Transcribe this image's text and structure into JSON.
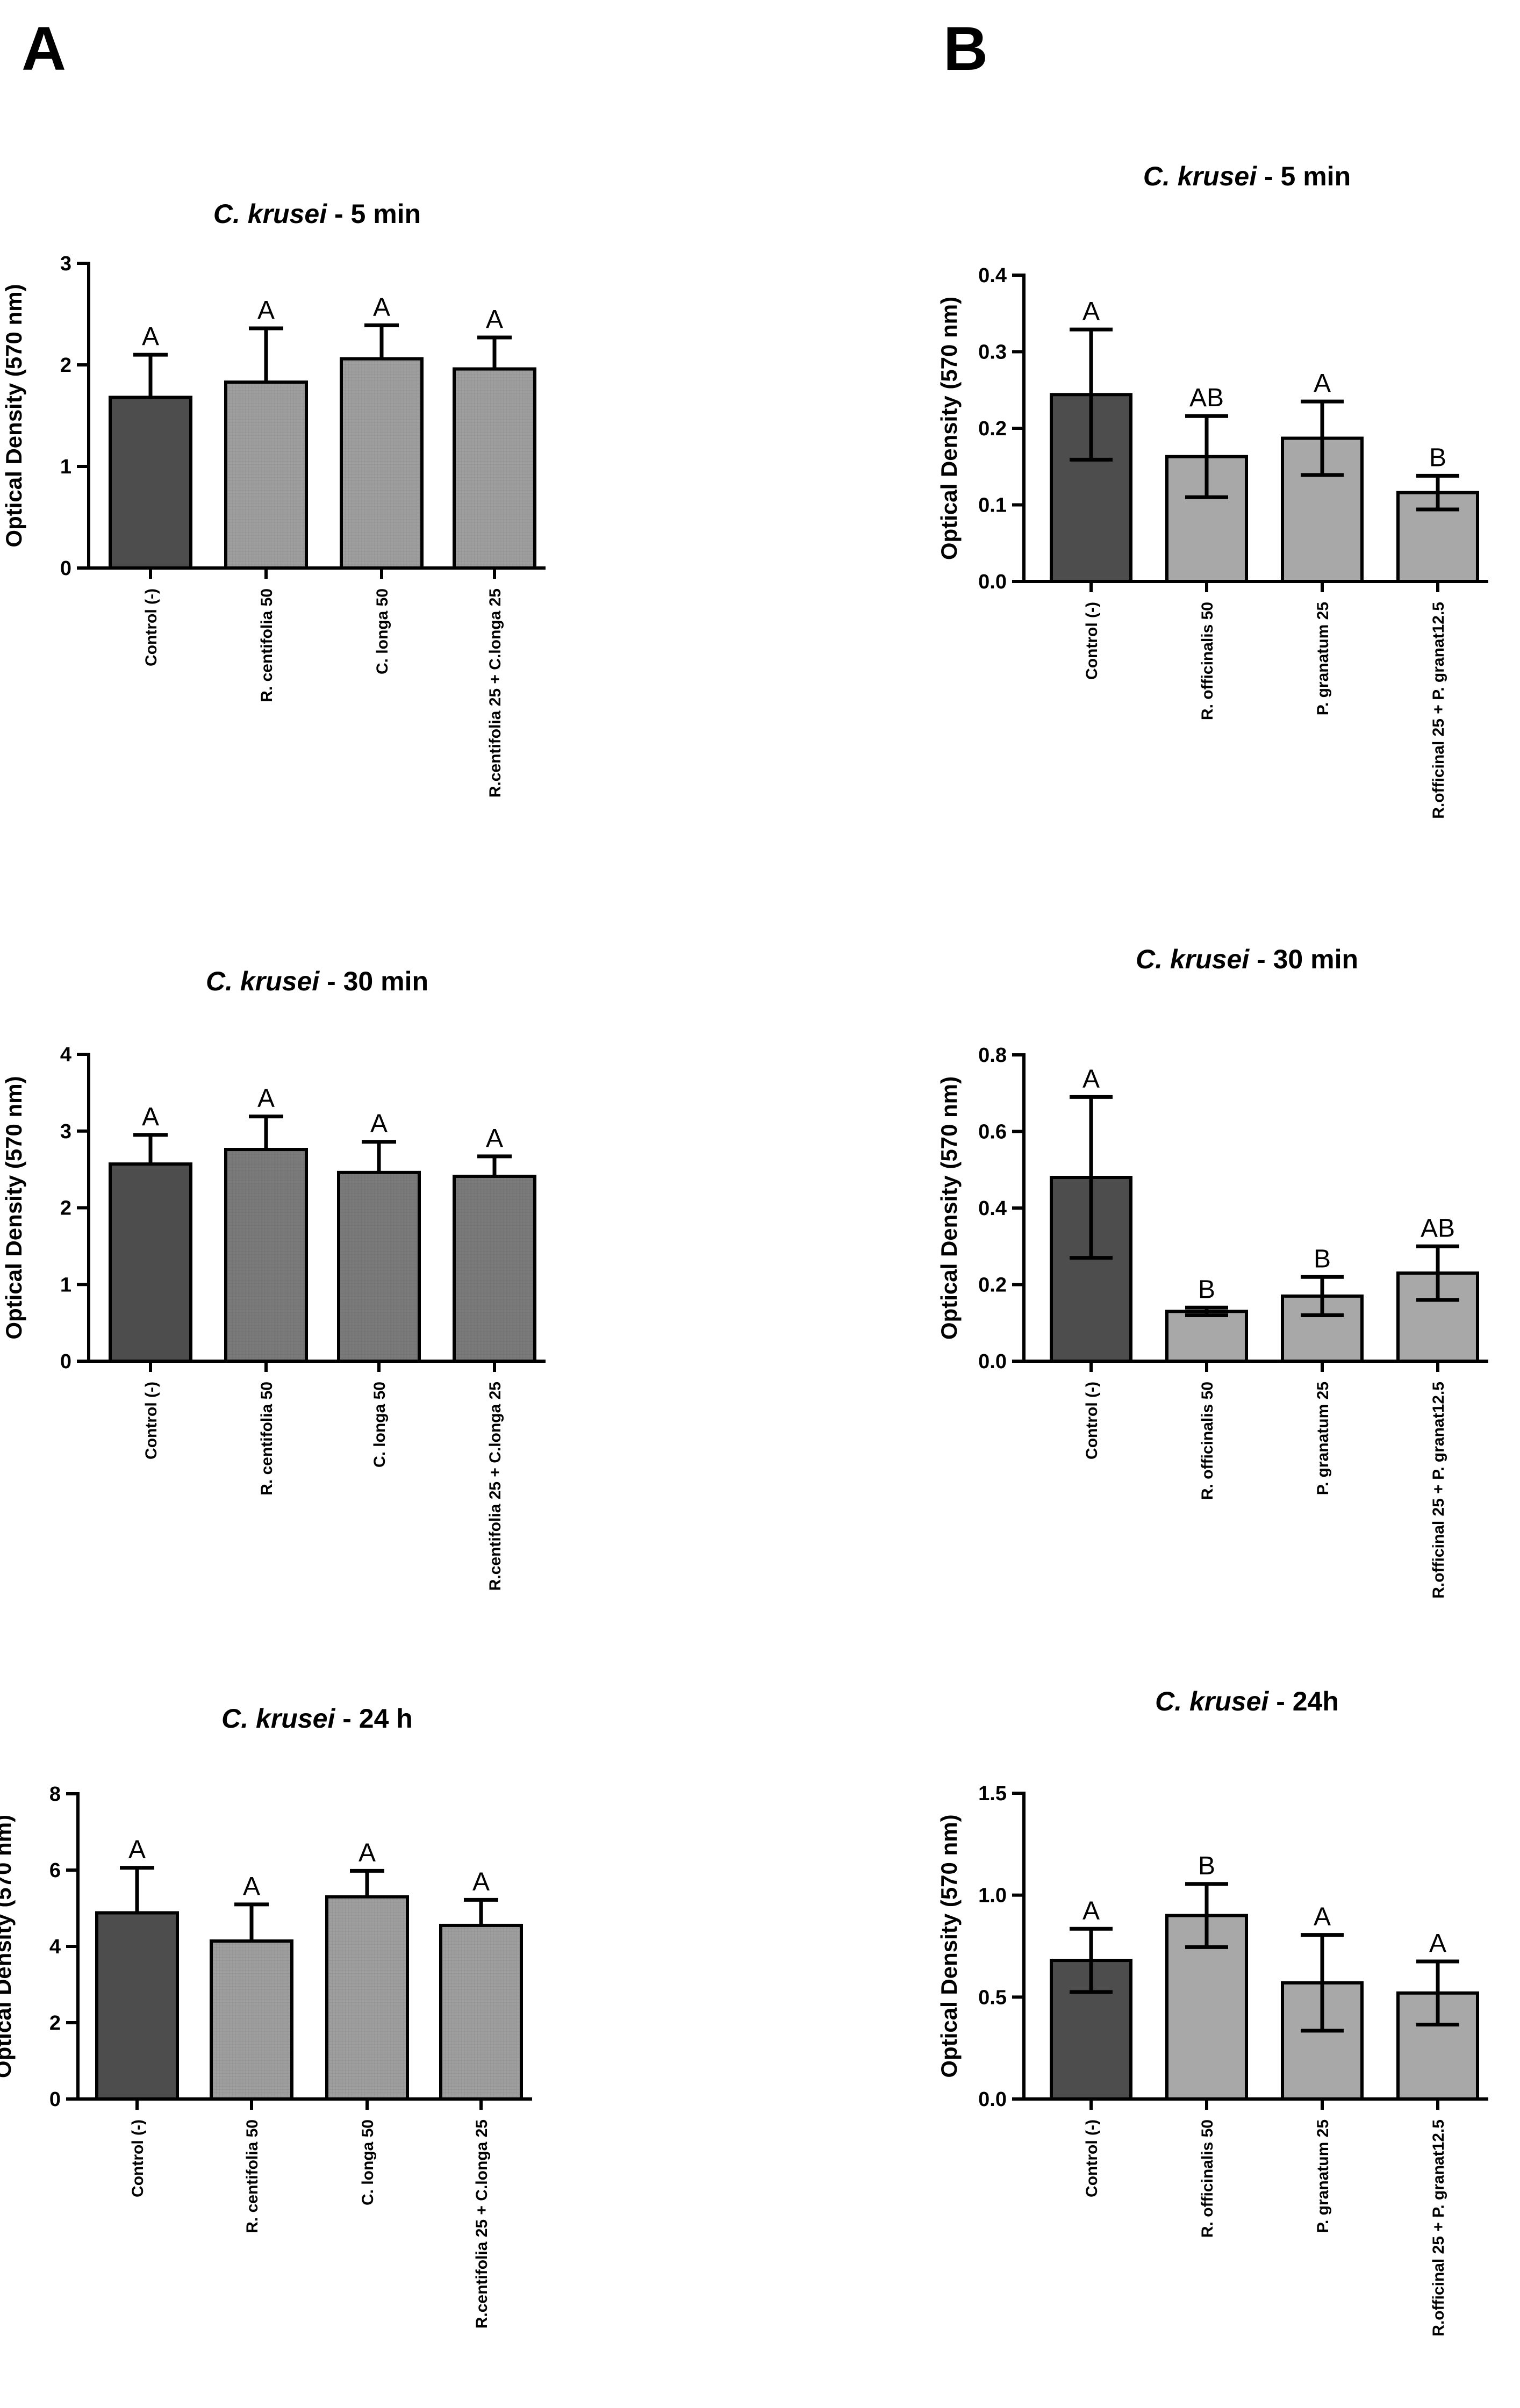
{
  "figure": {
    "panel_labels": [
      "A",
      "B"
    ]
  },
  "chart_data": [
    {
      "id": "A1",
      "type": "bar",
      "title_species": "C. krusei",
      "title_suffix": " - 5 min",
      "ylabel": "Optical Density (570 nm)",
      "ylim": [
        0,
        3
      ],
      "yticks": [
        0,
        1,
        2,
        3
      ],
      "tick_decimals": 0,
      "categories": [
        "Control (-)",
        "R. centifolia 50",
        "C. longa 50",
        "R.centifolia 25 + C.longa 25"
      ],
      "values": [
        1.68,
        1.83,
        2.06,
        1.96
      ],
      "errors": [
        0.42,
        0.53,
        0.33,
        0.31
      ],
      "error_style": "upper",
      "letters": [
        "A",
        "A",
        "A",
        "A"
      ],
      "colors": [
        "#4d4d4d",
        "#9e9e9e",
        "#9e9e9e",
        "#9e9e9e"
      ]
    },
    {
      "id": "A2",
      "type": "bar",
      "title_species": "C. krusei",
      "title_suffix": " - 30 min",
      "ylabel": "Optical Density (570 nm)",
      "ylim": [
        0,
        4
      ],
      "yticks": [
        0,
        1,
        2,
        3,
        4
      ],
      "tick_decimals": 0,
      "categories": [
        "Control (-)",
        "R. centifolia 50",
        "C. longa 50",
        "R.centifolia 25 + C.longa 25"
      ],
      "values": [
        2.57,
        2.76,
        2.46,
        2.41
      ],
      "errors": [
        0.38,
        0.43,
        0.4,
        0.26
      ],
      "error_style": "upper",
      "letters": [
        "A",
        "A",
        "A",
        "A"
      ],
      "colors": [
        "#4d4d4d",
        "#7a7a7a",
        "#7a7a7a",
        "#7a7a7a"
      ]
    },
    {
      "id": "A3",
      "type": "bar",
      "title_species": "C. krusei",
      "title_suffix": " - 24 h",
      "ylabel": "Optical Density (570 nm)",
      "ylim": [
        0,
        8
      ],
      "yticks": [
        0,
        2,
        4,
        6,
        8
      ],
      "tick_decimals": 0,
      "categories": [
        "Control (-)",
        "R. centifolia 50",
        "C. longa 50",
        "R.centifolia 25 + C.longa 25"
      ],
      "values": [
        4.88,
        4.14,
        5.3,
        4.55
      ],
      "errors": [
        1.18,
        0.96,
        0.68,
        0.67
      ],
      "error_style": "upper",
      "letters": [
        "A",
        "A",
        "A",
        "A"
      ],
      "colors": [
        "#4d4d4d",
        "#9e9e9e",
        "#9e9e9e",
        "#9e9e9e"
      ]
    },
    {
      "id": "B1",
      "type": "bar",
      "title_species": "C. krusei",
      "title_suffix": " - 5 min",
      "ylabel": "Optical Density (570 nm)",
      "ylim": [
        0,
        0.4
      ],
      "yticks": [
        0,
        0.1,
        0.2,
        0.3,
        0.4
      ],
      "tick_decimals": 1,
      "categories": [
        "Control (-)",
        "R. officinalis 50",
        "P. granatum 25",
        "R.officinal 25 + P. granat12.5"
      ],
      "values": [
        0.244,
        0.163,
        0.187,
        0.116
      ],
      "errors": [
        0.085,
        0.053,
        0.048,
        0.022
      ],
      "error_style": "both",
      "letters": [
        "A",
        "AB",
        "A",
        "B"
      ],
      "colors": [
        "#4d4d4d",
        "#a8a8a8",
        "#a8a8a8",
        "#a8a8a8"
      ]
    },
    {
      "id": "B2",
      "type": "bar",
      "title_species": "C. krusei",
      "title_suffix": " - 30 min",
      "ylabel": "Optical Density (570 nm)",
      "ylim": [
        0,
        0.8
      ],
      "yticks": [
        0,
        0.2,
        0.4,
        0.6,
        0.8
      ],
      "tick_decimals": 1,
      "categories": [
        "Control (-)",
        "R. officinalis 50",
        "P. granatum 25",
        "R.officinal 25 + P. granat12.5"
      ],
      "values": [
        0.48,
        0.13,
        0.17,
        0.23
      ],
      "errors": [
        0.21,
        0.01,
        0.05,
        0.07
      ],
      "error_style": "both",
      "letters": [
        "A",
        "B",
        "B",
        "AB"
      ],
      "colors": [
        "#4d4d4d",
        "#a8a8a8",
        "#a8a8a8",
        "#a8a8a8"
      ]
    },
    {
      "id": "B3",
      "type": "bar",
      "title_species": "C. krusei",
      "title_suffix": " - 24h",
      "ylabel": "Optical Density (570 nm)",
      "ylim": [
        0,
        1.5
      ],
      "yticks": [
        0,
        0.5,
        1.0,
        1.5
      ],
      "tick_decimals": 1,
      "categories": [
        "Control (-)",
        "R. officinalis 50",
        "P. granatum 25",
        "R.officinal 25 + P. granat12.5"
      ],
      "values": [
        0.68,
        0.9,
        0.57,
        0.52
      ],
      "errors": [
        0.155,
        0.155,
        0.235,
        0.155
      ],
      "error_style": "both",
      "letters": [
        "A",
        "B",
        "A",
        "A"
      ],
      "colors": [
        "#4d4d4d",
        "#a8a8a8",
        "#a8a8a8",
        "#a8a8a8"
      ]
    }
  ]
}
